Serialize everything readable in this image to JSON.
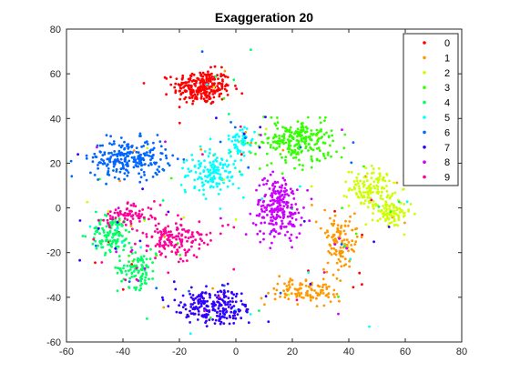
{
  "chart_data": {
    "type": "scatter",
    "title": "Exaggeration 20",
    "xlabel": "",
    "ylabel": "",
    "xlim": [
      -60,
      80
    ],
    "ylim": [
      -60,
      80
    ],
    "xticks": [
      -60,
      -40,
      -20,
      0,
      20,
      40,
      60,
      80
    ],
    "yticks": [
      -60,
      -40,
      -20,
      0,
      20,
      40,
      60,
      80
    ],
    "grid": false,
    "legend_position": "top-right",
    "series": [
      {
        "name": "0",
        "color": "#ff0000",
        "clusters": [
          {
            "cx": -12,
            "cy": 54,
            "sx": 6,
            "sy": 4.5,
            "n": 260
          }
        ]
      },
      {
        "name": "1",
        "color": "#ff9900",
        "clusters": [
          {
            "cx": 37,
            "cy": -15,
            "sx": 3.5,
            "sy": 7,
            "n": 110
          },
          {
            "cx": 24,
            "cy": -37,
            "sx": 7,
            "sy": 3.5,
            "n": 110
          }
        ]
      },
      {
        "name": "2",
        "color": "#ccff00",
        "clusters": [
          {
            "cx": 48,
            "cy": 9,
            "sx": 4.5,
            "sy": 5,
            "n": 130
          },
          {
            "cx": 55,
            "cy": -3,
            "sx": 4,
            "sy": 3.5,
            "n": 80
          }
        ]
      },
      {
        "name": "3",
        "color": "#33ff00",
        "clusters": [
          {
            "cx": 22,
            "cy": 30,
            "sx": 8,
            "sy": 5.5,
            "n": 240
          }
        ]
      },
      {
        "name": "4",
        "color": "#00ff66",
        "clusters": [
          {
            "cx": -44,
            "cy": -12,
            "sx": 4.5,
            "sy": 5,
            "n": 120
          },
          {
            "cx": -35,
            "cy": -27,
            "sx": 4,
            "sy": 5,
            "n": 100
          }
        ]
      },
      {
        "name": "5",
        "color": "#00ffff",
        "clusters": [
          {
            "cx": -8,
            "cy": 16,
            "sx": 5,
            "sy": 6,
            "n": 150
          },
          {
            "cx": 2,
            "cy": 30,
            "sx": 3,
            "sy": 4,
            "n": 50
          }
        ]
      },
      {
        "name": "6",
        "color": "#0066ff",
        "clusters": [
          {
            "cx": -38,
            "cy": 22,
            "sx": 8,
            "sy": 5,
            "n": 240
          }
        ]
      },
      {
        "name": "7",
        "color": "#3300ff",
        "clusters": [
          {
            "cx": -8,
            "cy": -44,
            "sx": 8,
            "sy": 4.5,
            "n": 240
          }
        ]
      },
      {
        "name": "8",
        "color": "#cc00ff",
        "clusters": [
          {
            "cx": 15,
            "cy": 0,
            "sx": 5,
            "sy": 8,
            "n": 230
          }
        ]
      },
      {
        "name": "9",
        "color": "#ff0099",
        "clusters": [
          {
            "cx": -22,
            "cy": -14,
            "sx": 7,
            "sy": 5.5,
            "n": 150
          },
          {
            "cx": -38,
            "cy": -3,
            "sx": 5,
            "sy": 2.5,
            "n": 70
          }
        ]
      }
    ],
    "noise_points_per_series": 18
  }
}
